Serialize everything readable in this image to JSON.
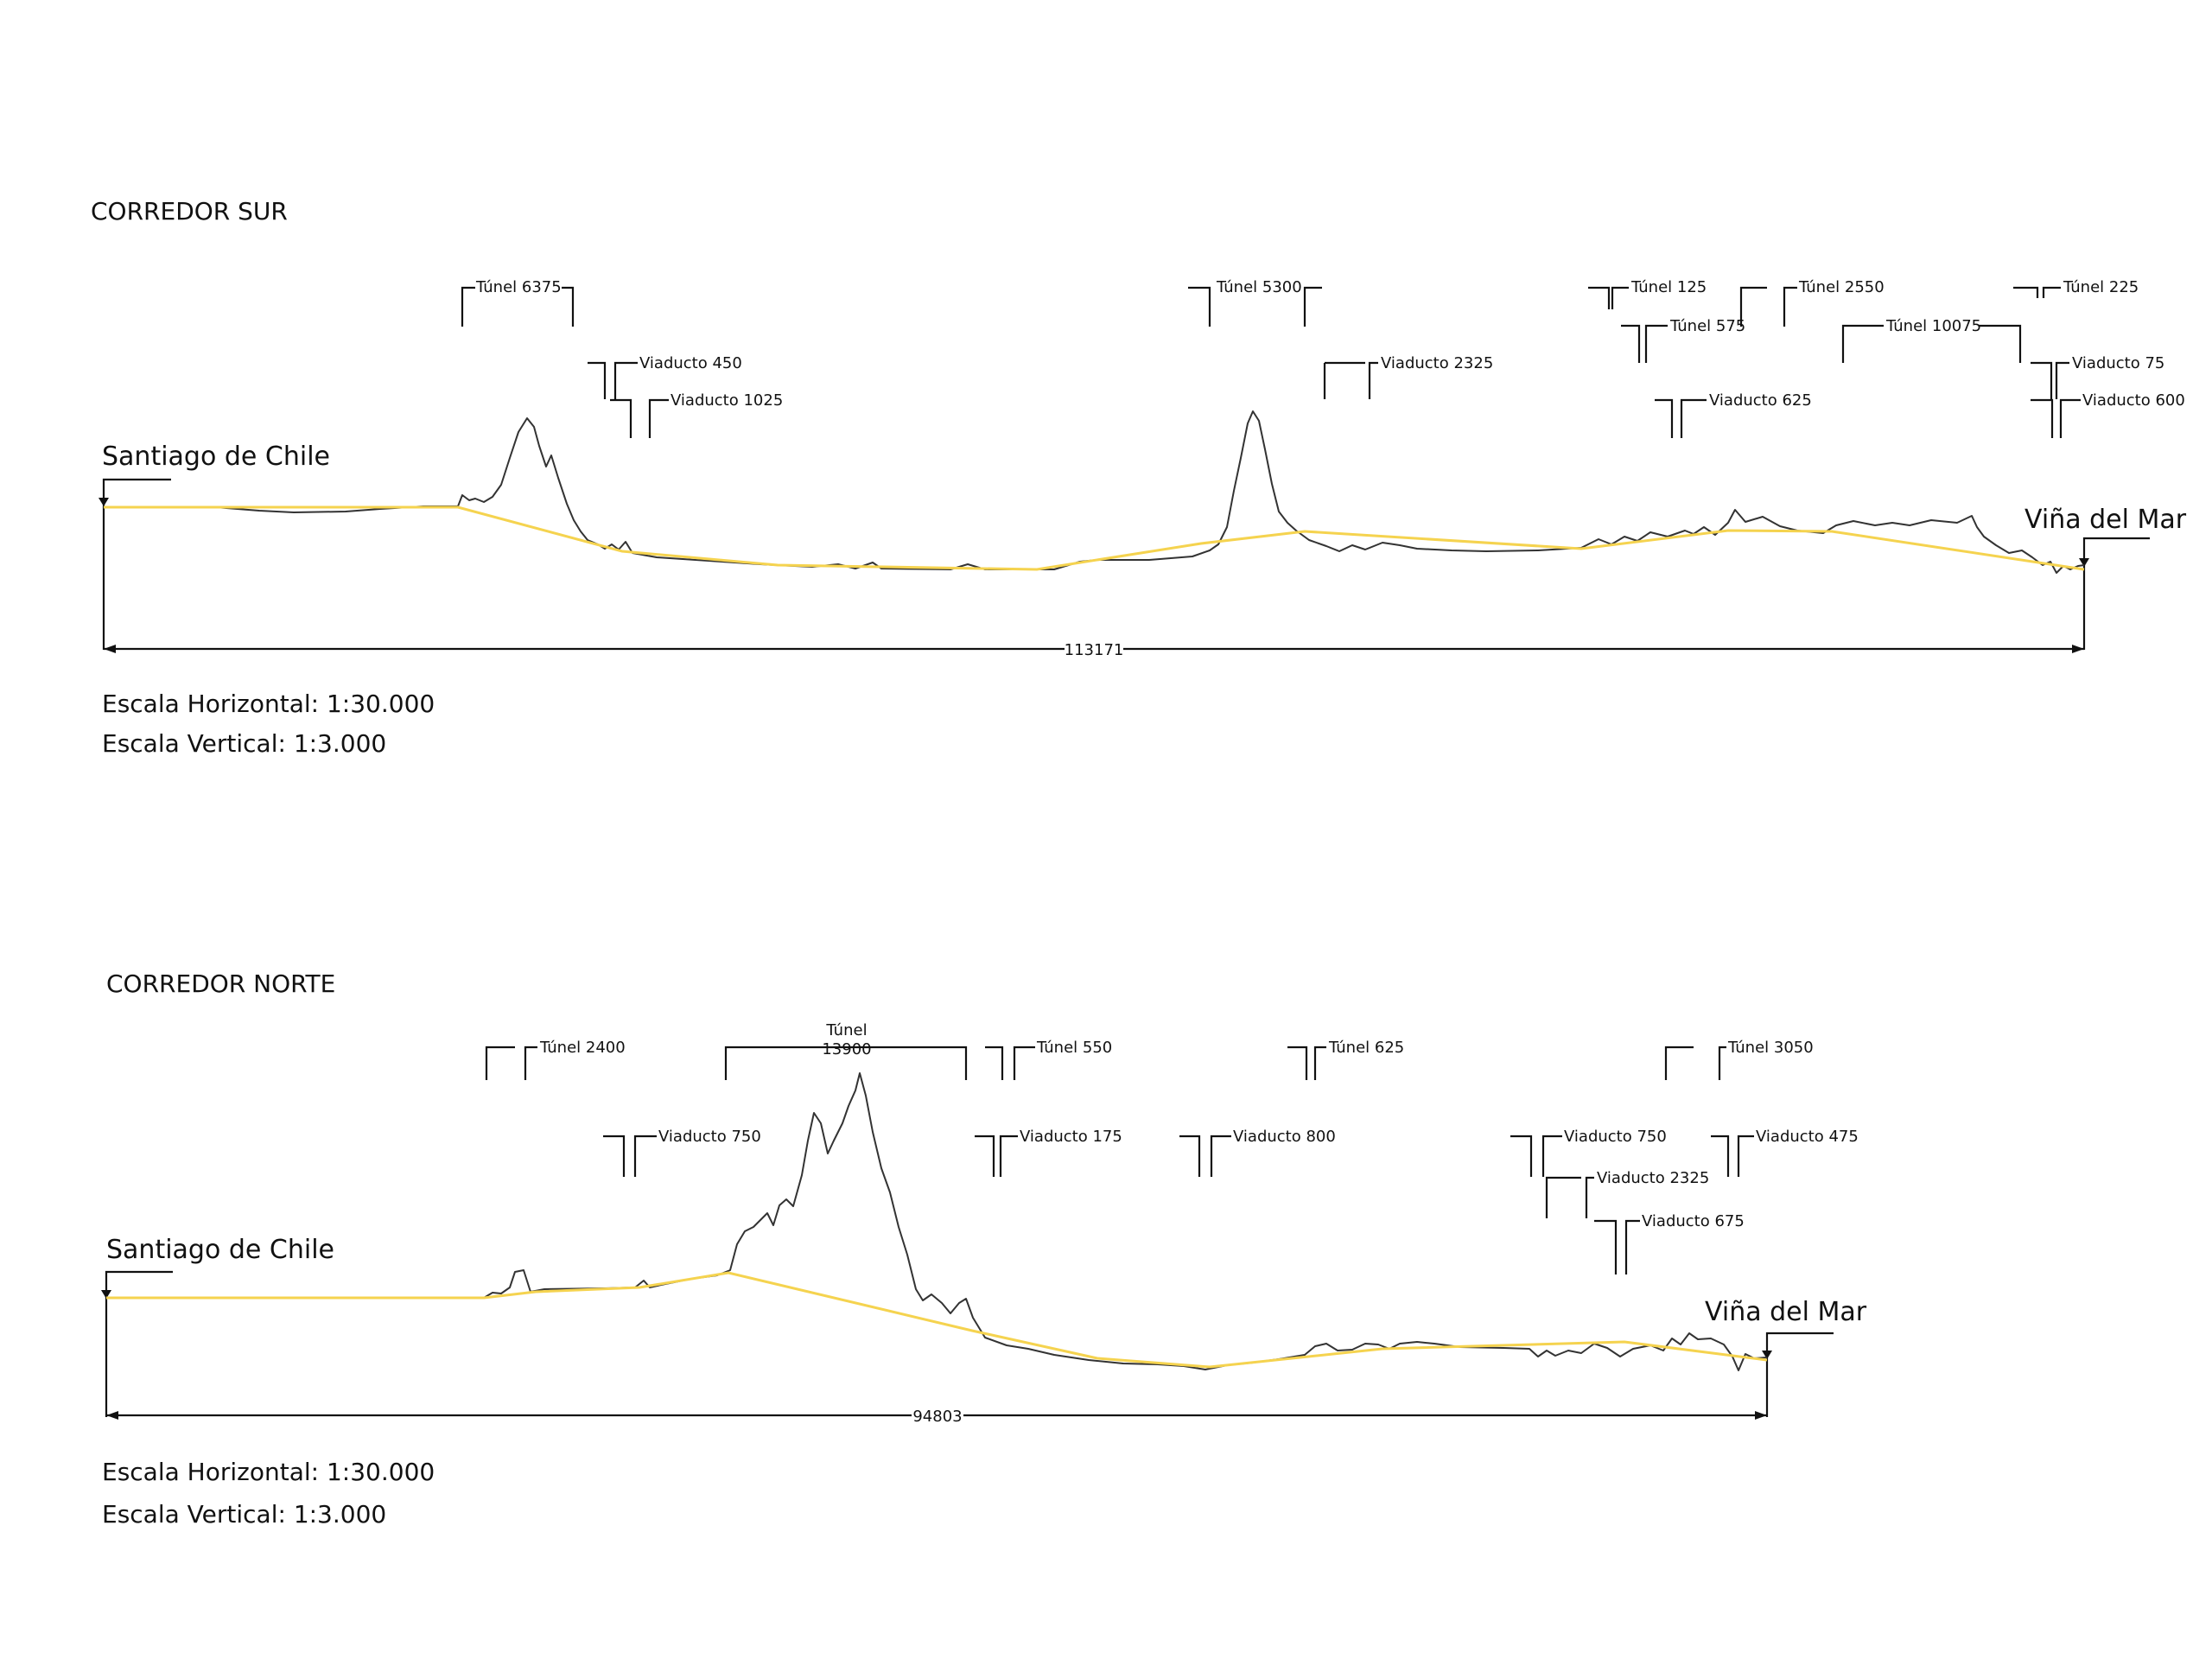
{
  "profiles": [
    {
      "title": "CORREDOR SUR",
      "start": "Santiago de Chile",
      "end": "Viña del Mar",
      "total_length": "113171",
      "scale_h": "Escala Horizontal: 1:30.000",
      "scale_v": "Escala Vertical: 1:3.000",
      "structures": [
        {
          "label": "Túnel 6375"
        },
        {
          "label": "Viaducto 450"
        },
        {
          "label": "Viaducto 1025"
        },
        {
          "label": "Túnel 5300"
        },
        {
          "label": "Viaducto 2325"
        },
        {
          "label": "Túnel 125"
        },
        {
          "label": "Túnel 575"
        },
        {
          "label": "Viaducto 625"
        },
        {
          "label": "Túnel 2550"
        },
        {
          "label": "Túnel 10075"
        },
        {
          "label": "Túnel 225"
        },
        {
          "label": "Viaducto 75"
        },
        {
          "label": "Viaducto 600"
        }
      ]
    },
    {
      "title": "CORREDOR NORTE",
      "start": "Santiago de Chile",
      "end": "Viña del Mar",
      "total_length": "94803",
      "scale_h": "Escala Horizontal: 1:30.000",
      "scale_v": "Escala Vertical: 1:3.000",
      "structures": [
        {
          "label": "Túnel 2400"
        },
        {
          "label": "Túnel"
        },
        {
          "label": "13900"
        },
        {
          "label": "Túnel 550"
        },
        {
          "label": "Túnel 625"
        },
        {
          "label": "Túnel 3050"
        },
        {
          "label": "Viaducto 750"
        },
        {
          "label": "Viaducto 175"
        },
        {
          "label": "Viaducto 800"
        },
        {
          "label": "Viaducto 750"
        },
        {
          "label": "Viaducto 475"
        },
        {
          "label": "Viaducto 2325"
        },
        {
          "label": "Viaducto 675"
        }
      ]
    }
  ],
  "colors": {
    "grade_line": "#f5d34f",
    "terrain_line": "#333333",
    "ink": "#111111"
  }
}
